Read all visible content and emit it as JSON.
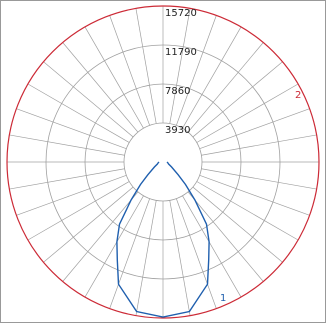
{
  "chart_data": {
    "type": "polar",
    "rlim": [
      0,
      15720
    ],
    "rticks": [
      3930,
      7860,
      11790,
      15720
    ],
    "grid": true,
    "outer_ring_color": "#cc2a36",
    "series": [
      {
        "name": "1",
        "color": "#1f5fae",
        "x": [
          -90,
          -80,
          -70,
          -60,
          -50,
          -45,
          -40,
          -35,
          -30,
          -25,
          -20,
          -10,
          0,
          10,
          20,
          25,
          30,
          35,
          40,
          45,
          50,
          60,
          70,
          80,
          90
        ],
        "values": [
          400,
          500,
          600,
          1000,
          2000,
          3200,
          5000,
          7650,
          9300,
          10900,
          13100,
          15300,
          15620,
          15300,
          13100,
          10900,
          9300,
          7650,
          5000,
          3200,
          2000,
          1000,
          600,
          500,
          400
        ]
      }
    ],
    "annotations": [
      {
        "text": "2",
        "color": "#cc2a36"
      }
    ]
  }
}
